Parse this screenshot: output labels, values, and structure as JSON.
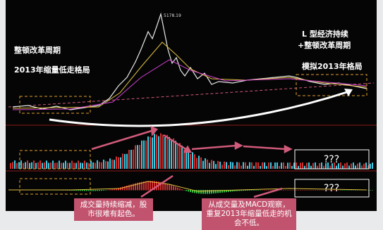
{
  "left_notes": {
    "cycle": "整顿改革周期",
    "pattern_2013": "2013年缩量低走格局"
  },
  "right_notes": {
    "line1": "L 型经济持续",
    "line2": "+整顿改革周期",
    "line3": "模拟2013年格局"
  },
  "peak_label": "5178.19",
  "unknown_boxes": [
    "???",
    "???"
  ],
  "callouts": [
    "成交量持续缩减，股市很难有起色。",
    "从成交量及MACD观察，重复2013年缩量低走的机会不低。"
  ]
}
